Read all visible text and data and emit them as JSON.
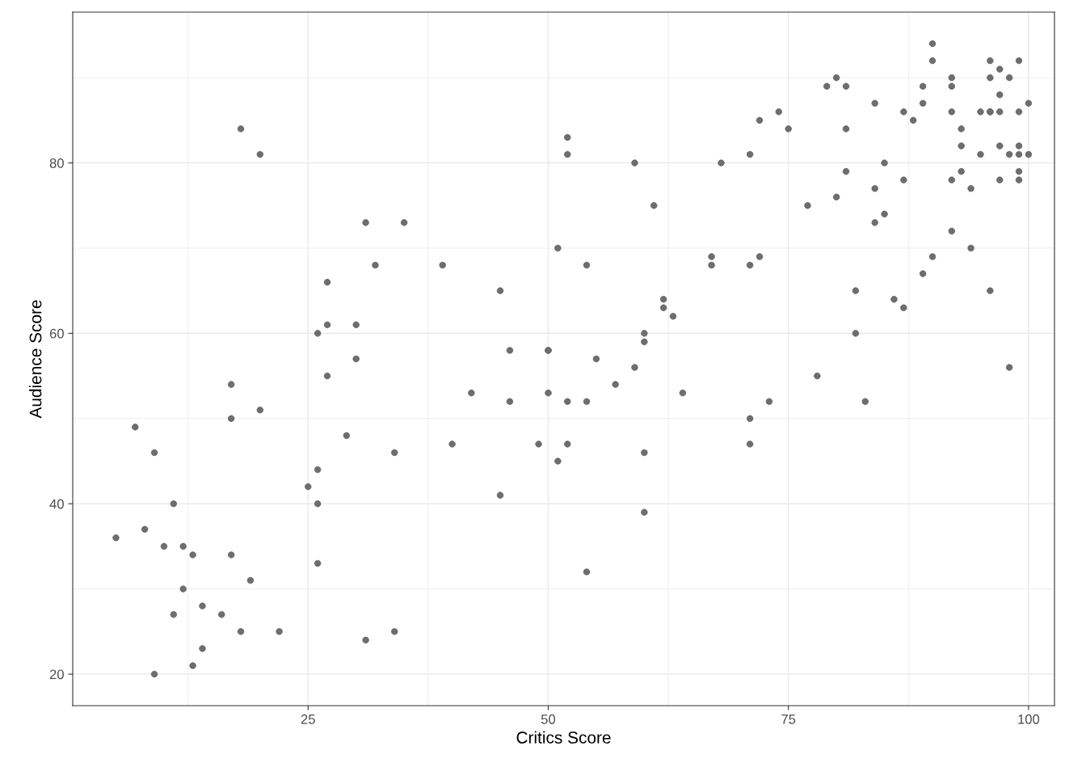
{
  "chart_data": {
    "type": "scatter",
    "xlabel": "Critics Score",
    "ylabel": "Audience Score",
    "xlim": [
      0.5,
      102.7
    ],
    "ylim": [
      16.3,
      97.7
    ],
    "xticks": [
      25,
      50,
      75,
      100
    ],
    "yticks": [
      20,
      40,
      60,
      80
    ],
    "grid": true,
    "marker": "circle",
    "series": [
      {
        "color": "#6e6e6e",
        "x": [
          5,
          7,
          8,
          9,
          9,
          10,
          11,
          11,
          12,
          12,
          13,
          13,
          14,
          14,
          16,
          17,
          17,
          17,
          18,
          18,
          19,
          20,
          20,
          22,
          25,
          26,
          26,
          26,
          26,
          27,
          27,
          27,
          29,
          30,
          30,
          31,
          31,
          32,
          34,
          34,
          35,
          39,
          40,
          42,
          45,
          45,
          46,
          46,
          49,
          50,
          50,
          50,
          51,
          51,
          52,
          52,
          52,
          52,
          54,
          54,
          54,
          55,
          57,
          59,
          59,
          60,
          60,
          60,
          60,
          61,
          62,
          62,
          63,
          64,
          67,
          67,
          68,
          71,
          71,
          71,
          71,
          72,
          72,
          73,
          74,
          75,
          77,
          78,
          79,
          80,
          80,
          81,
          81,
          81,
          82,
          82,
          83,
          84,
          84,
          84,
          85,
          85,
          86,
          87,
          87,
          87,
          88,
          89,
          89,
          89,
          90,
          90,
          90,
          92,
          92,
          92,
          92,
          92,
          93,
          93,
          93,
          94,
          94,
          95,
          95,
          96,
          96,
          96,
          96,
          96,
          97,
          97,
          97,
          97,
          97,
          98,
          98,
          98,
          99,
          99,
          99,
          99,
          99,
          99,
          100,
          100
        ],
        "values": [
          36,
          49,
          37,
          46,
          20,
          35,
          40,
          27,
          35,
          30,
          34,
          21,
          28,
          23,
          27,
          54,
          50,
          34,
          84,
          25,
          31,
          81,
          51,
          25,
          42,
          60,
          44,
          40,
          33,
          66,
          61,
          55,
          48,
          61,
          57,
          73,
          24,
          68,
          46,
          25,
          73,
          68,
          47,
          53,
          65,
          41,
          58,
          52,
          47,
          58,
          58,
          53,
          70,
          45,
          83,
          81,
          52,
          47,
          68,
          52,
          32,
          57,
          54,
          80,
          56,
          60,
          59,
          46,
          39,
          75,
          64,
          63,
          62,
          53,
          69,
          68,
          80,
          81,
          68,
          50,
          47,
          85,
          69,
          52,
          86,
          84,
          75,
          55,
          89,
          90,
          76,
          89,
          84,
          79,
          65,
          60,
          52,
          87,
          77,
          73,
          80,
          74,
          64,
          86,
          78,
          63,
          85,
          89,
          87,
          67,
          94,
          92,
          69,
          90,
          89,
          86,
          78,
          72,
          84,
          82,
          79,
          77,
          70,
          86,
          81,
          92,
          90,
          86,
          86,
          65,
          91,
          88,
          86,
          82,
          78,
          90,
          81,
          56,
          92,
          86,
          82,
          81,
          79,
          78,
          87,
          81
        ]
      }
    ]
  }
}
